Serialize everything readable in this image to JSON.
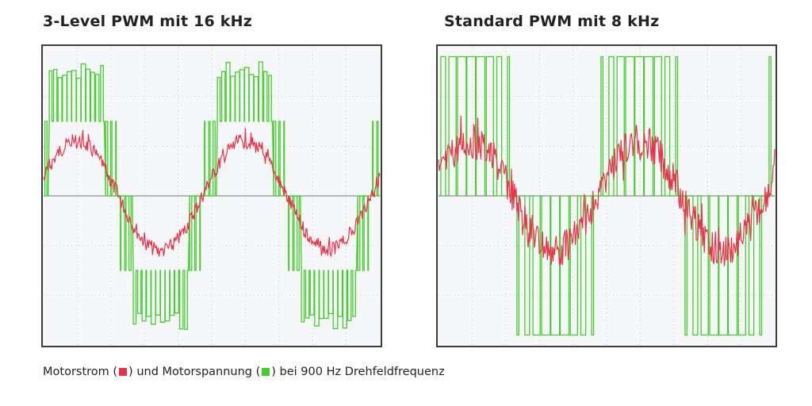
{
  "chart_data": [
    {
      "type": "line",
      "title": "3-Level PWM mit 16 kHz",
      "x_divisions": 10,
      "y_divisions": 6,
      "grid": true,
      "xlim": [
        0,
        10
      ],
      "ylim": [
        -3,
        3
      ],
      "series": [
        {
          "color": "#e8334a",
          "waveform": "sine",
          "cycles": 2,
          "start_phase_deg": 20,
          "amplitude_div": 1.1,
          "ripple_div": 0.15
        },
        {
          "color": "#44cc2c",
          "waveform": "3-level-pwm",
          "levels_div": [
            -1.5,
            0,
            1.5
          ],
          "spike_div": 2.7,
          "pulses_per_cycle": 36
        }
      ]
    },
    {
      "type": "line",
      "title": "Standard PWM mit 8 kHz",
      "x_divisions": 10,
      "y_divisions": 6,
      "grid": true,
      "xlim": [
        0,
        10
      ],
      "ylim": [
        -3,
        3
      ],
      "series": [
        {
          "color": "#e8334a",
          "waveform": "sine",
          "cycles": 2,
          "start_phase_deg": 20,
          "amplitude_div": 1.1,
          "ripple_div": 0.35
        },
        {
          "color": "#44cc2c",
          "waveform": "2-level-pwm",
          "levels_div": [
            -2.8,
            0,
            2.8
          ],
          "pulses_per_cycle": 18
        }
      ]
    }
  ],
  "caption": {
    "part1": "Motorstrom (",
    "part2": ") und Motorspannung (",
    "part3": ") bei 900 Hz Drehfeldfrequenz",
    "current_color": "#e8334a",
    "voltage_color": "#44cc2c"
  }
}
